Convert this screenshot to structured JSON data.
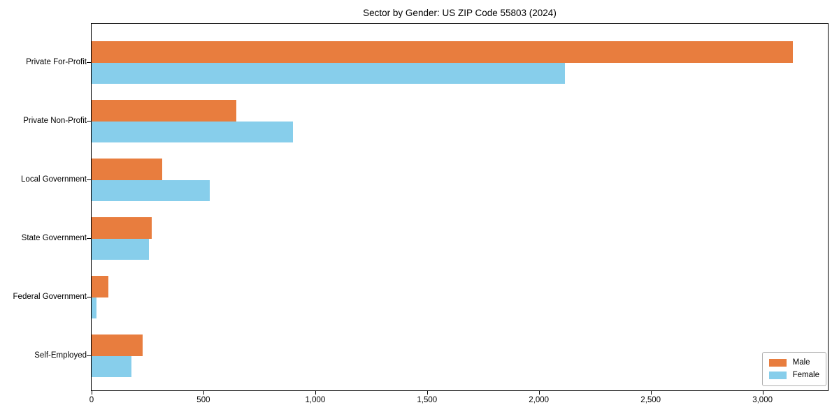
{
  "chart_data": {
    "type": "bar",
    "orientation": "horizontal",
    "title": "Sector by Gender: US ZIP Code 55803 (2024)",
    "categories": [
      "Private For-Profit",
      "Private Non-Profit",
      "Local Government",
      "State Government",
      "Federal Government",
      "Self-Employed"
    ],
    "series": [
      {
        "name": "Male",
        "color": "#E87D3E",
        "values": [
          3135,
          646,
          317,
          268,
          76,
          227
        ]
      },
      {
        "name": "Female",
        "color": "#87CEEB",
        "values": [
          2117,
          901,
          529,
          255,
          22,
          178
        ]
      }
    ],
    "xlabel": "",
    "ylabel": "",
    "xlim": [
      0,
      3292
    ],
    "xticks": [
      0,
      500,
      1000,
      1500,
      2000,
      2500,
      3000
    ],
    "xtick_labels": [
      "0",
      "500",
      "1,000",
      "1,500",
      "2,000",
      "2,500",
      "3,000"
    ],
    "grid": false,
    "legend": {
      "position": "lower right",
      "entries": [
        "Male",
        "Female"
      ]
    },
    "colors": {
      "axis": "#000000",
      "background": "#ffffff",
      "legend_border": "#b0b0b0"
    }
  }
}
